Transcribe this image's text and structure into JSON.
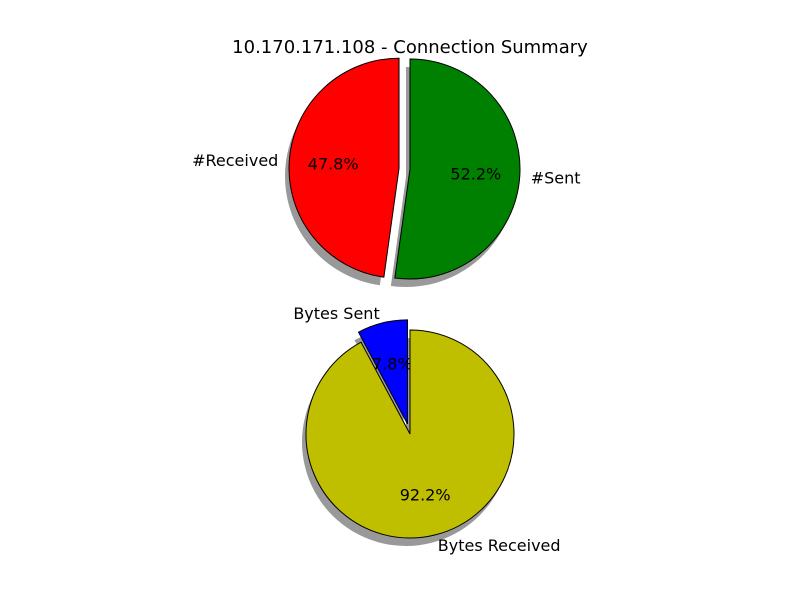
{
  "title": "10.170.171.108 - Connection Summary",
  "chart_data": [
    {
      "type": "pie",
      "title": "",
      "labels": [
        "#Received",
        "#Sent"
      ],
      "values": [
        47.8,
        52.2
      ],
      "value_labels": [
        "47.8%",
        "52.2%"
      ],
      "colors": [
        "#ff0000",
        "#008000"
      ],
      "exploded": [
        true,
        false
      ],
      "shadow": true,
      "start_angle_deg": 90
    },
    {
      "type": "pie",
      "title": "",
      "labels": [
        "Bytes Sent",
        "Bytes Received"
      ],
      "values": [
        7.8,
        92.2
      ],
      "value_labels": [
        "7.8%",
        "92.2%"
      ],
      "colors": [
        "#0000ff",
        "#bfbf00"
      ],
      "exploded": [
        true,
        false
      ],
      "shadow": true,
      "start_angle_deg": 90
    }
  ]
}
